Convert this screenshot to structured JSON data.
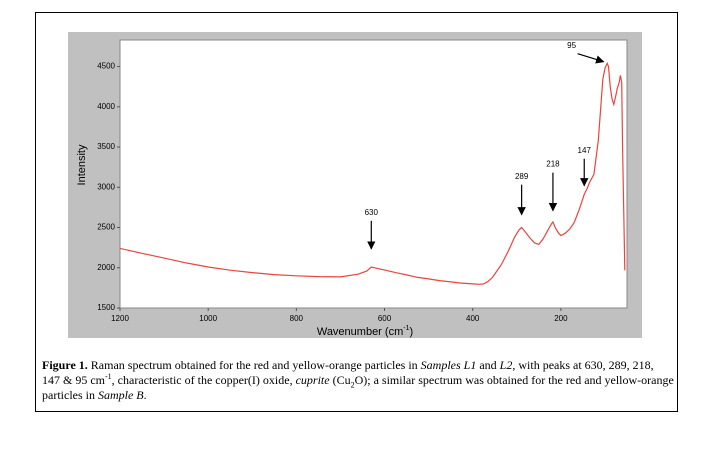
{
  "chart_data": {
    "type": "line",
    "y_label": "Intensity",
    "x_label": [
      "Wavenumber (cm",
      "-1",
      ")"
    ],
    "xlim": [
      1200,
      50
    ],
    "ylim": [
      1500,
      4830
    ],
    "xticks": [
      1200,
      1000,
      800,
      600,
      400,
      200
    ],
    "yticks": [
      1500,
      2000,
      2500,
      3000,
      3500,
      4000,
      4500
    ],
    "x": [
      1200,
      1150,
      1100,
      1050,
      1000,
      950,
      900,
      850,
      800,
      750,
      700,
      660,
      640,
      630,
      615,
      600,
      575,
      550,
      525,
      500,
      475,
      450,
      425,
      400,
      385,
      375,
      365,
      355,
      345,
      335,
      320,
      305,
      295,
      289,
      280,
      270,
      260,
      250,
      240,
      230,
      222,
      218,
      212,
      205,
      200,
      190,
      180,
      170,
      160,
      153,
      147,
      140,
      135,
      125,
      115,
      110,
      105,
      100,
      95,
      92,
      88,
      84,
      80,
      76,
      72,
      68,
      65,
      62,
      60,
      57,
      55
    ],
    "series": [
      {
        "name": "Raman spectrum",
        "color": "#e8453c",
        "values": [
          2240,
          2180,
          2120,
          2060,
          2010,
          1970,
          1940,
          1915,
          1900,
          1890,
          1886,
          1920,
          1960,
          2010,
          1990,
          1973,
          1940,
          1911,
          1880,
          1861,
          1840,
          1824,
          1810,
          1800,
          1795,
          1800,
          1830,
          1880,
          1960,
          2040,
          2200,
          2380,
          2470,
          2500,
          2440,
          2370,
          2310,
          2290,
          2360,
          2460,
          2540,
          2570,
          2490,
          2430,
          2400,
          2430,
          2480,
          2560,
          2700,
          2810,
          2910,
          2990,
          3060,
          3160,
          3580,
          3950,
          4340,
          4480,
          4540,
          4500,
          4250,
          4100,
          4030,
          4120,
          4230,
          4300,
          4390,
          4300,
          3470,
          2600,
          1970
        ]
      }
    ],
    "annotations": [
      {
        "label": "630",
        "x": 630,
        "y": 2235
      },
      {
        "label": "289",
        "x": 289,
        "y": 2660
      },
      {
        "label": "218",
        "x": 218,
        "y": 2710
      },
      {
        "label": "147",
        "x": 147,
        "y": 3020
      },
      {
        "label": "95",
        "x": 103,
        "y": 4560
      }
    ]
  },
  "caption": [
    "Figure 1.",
    " Raman spectrum obtained for the red and yellow-orange particles in ",
    "Samples L1",
    " and ",
    "L2",
    ", with peaks at 630, 289, 218, 147 & 95 cm",
    "-1",
    ", characteristic of the copper(I) oxide, ",
    "cuprite",
    " (Cu",
    "2",
    "O); a similar spectrum was obtained for the red and yellow-orange particles in ",
    "Sample B",
    "."
  ]
}
